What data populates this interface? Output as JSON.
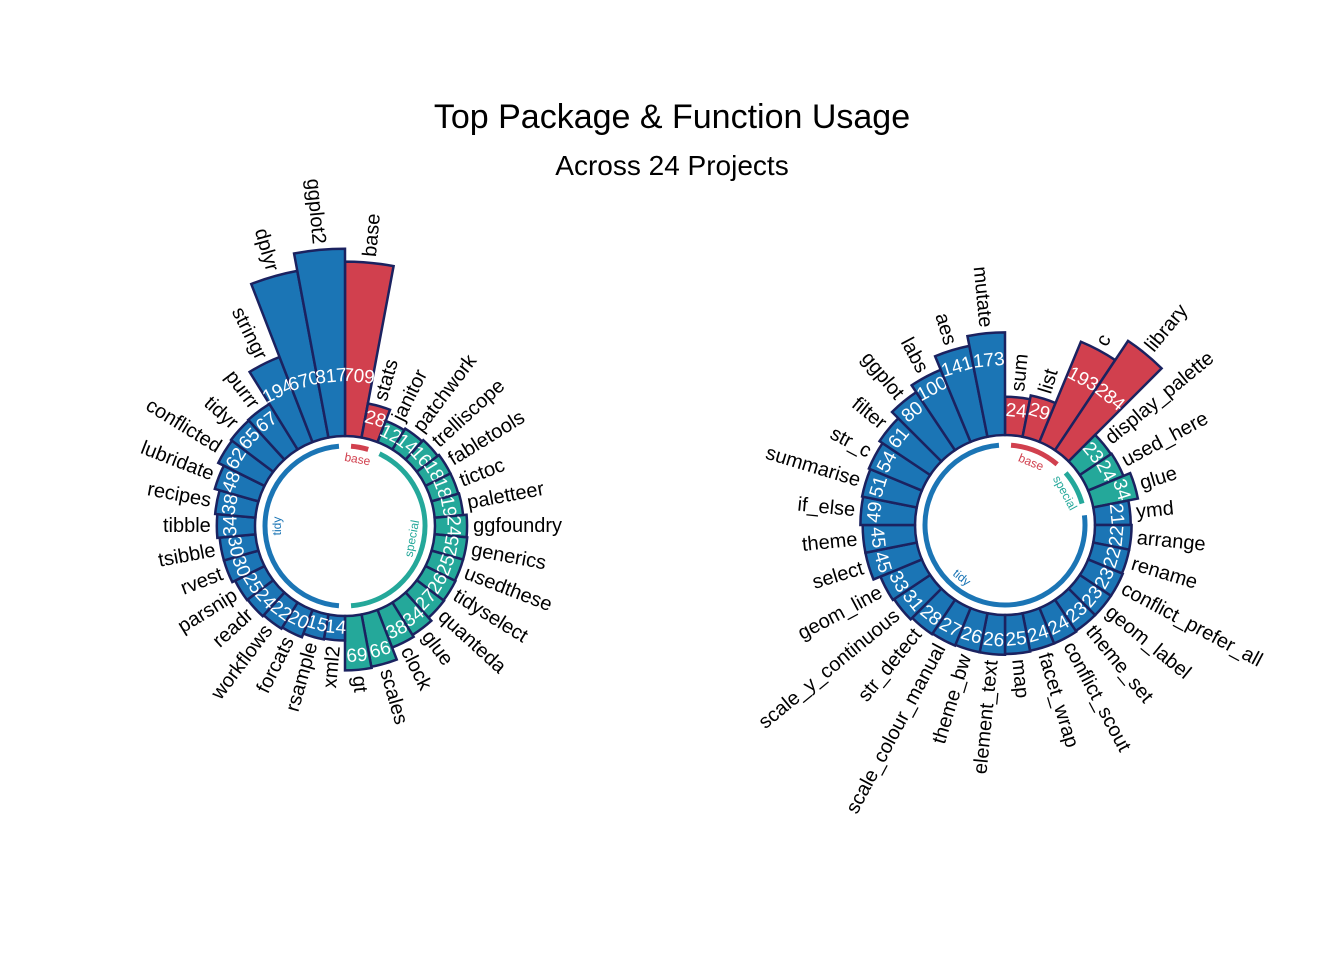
{
  "title": "Top Package & Function Usage",
  "subtitle": "Across 24 Projects",
  "colors": {
    "base": "#d1404e",
    "tidy": "#1b75b5",
    "special": "#24a89a",
    "outline": "#1b2260"
  },
  "chart_data": [
    {
      "type": "bar",
      "coord": "polar",
      "name": "packages",
      "y_scale": "sqrt",
      "bars": [
        {
          "label": "base",
          "value": 709,
          "group": "base"
        },
        {
          "label": "stats",
          "value": 28,
          "group": "base"
        },
        {
          "label": "janitor",
          "value": 12,
          "group": "special"
        },
        {
          "label": "patchwork",
          "value": 14,
          "group": "special"
        },
        {
          "label": "trelliscope",
          "value": 16,
          "group": "special"
        },
        {
          "label": "fabletools",
          "value": 18,
          "group": "special"
        },
        {
          "label": "tictoc",
          "value": 18,
          "group": "special"
        },
        {
          "label": "paletteer",
          "value": 19,
          "group": "special"
        },
        {
          "label": "ggfoundry",
          "value": 24,
          "group": "special"
        },
        {
          "label": "generics",
          "value": 25,
          "group": "special"
        },
        {
          "label": "usedthese",
          "value": 25,
          "group": "special"
        },
        {
          "label": "tidyselect",
          "value": 26,
          "group": "special"
        },
        {
          "label": "quanteda",
          "value": 27,
          "group": "special"
        },
        {
          "label": "glue",
          "value": 34,
          "group": "special"
        },
        {
          "label": "clock",
          "value": 38,
          "group": "special"
        },
        {
          "label": "scales",
          "value": 66,
          "group": "special"
        },
        {
          "label": "gt",
          "value": 69,
          "group": "special"
        },
        {
          "label": "xml2",
          "value": 14,
          "group": "tidy"
        },
        {
          "label": "rsample",
          "value": 15,
          "group": "tidy"
        },
        {
          "label": "forcats",
          "value": 20,
          "group": "tidy"
        },
        {
          "label": "workflows",
          "value": 22,
          "group": "tidy"
        },
        {
          "label": "readr",
          "value": 24,
          "group": "tidy"
        },
        {
          "label": "parsnip",
          "value": 25,
          "group": "tidy"
        },
        {
          "label": "rvest",
          "value": 30,
          "group": "tidy"
        },
        {
          "label": "tsibble",
          "value": 30,
          "group": "tidy"
        },
        {
          "label": "tibble",
          "value": 34,
          "group": "tidy"
        },
        {
          "label": "recipes",
          "value": 38,
          "group": "tidy"
        },
        {
          "label": "lubridate",
          "value": 48,
          "group": "tidy"
        },
        {
          "label": "conflicted",
          "value": 62,
          "group": "tidy"
        },
        {
          "label": "tidyr",
          "value": 65,
          "group": "tidy"
        },
        {
          "label": "purrr",
          "value": 67,
          "group": "tidy"
        },
        {
          "label": "stringr",
          "value": 194,
          "group": "tidy"
        },
        {
          "label": "dplyr",
          "value": 670,
          "group": "tidy"
        },
        {
          "label": "ggplot2",
          "value": 817,
          "group": "tidy"
        }
      ],
      "group_labels": [
        {
          "group": "base",
          "text": "base"
        },
        {
          "group": "special",
          "text": "special"
        },
        {
          "group": "tidy",
          "text": "tidy"
        }
      ]
    },
    {
      "type": "bar",
      "coord": "polar",
      "name": "functions",
      "y_scale": "sqrt",
      "bars": [
        {
          "label": "sum",
          "value": 24,
          "group": "base"
        },
        {
          "label": "list",
          "value": 29,
          "group": "base"
        },
        {
          "label": "c",
          "value": 193,
          "group": "base"
        },
        {
          "label": "library",
          "value": 284,
          "group": "base"
        },
        {
          "label": "display_palette",
          "value": 23,
          "group": "special"
        },
        {
          "label": "used_here",
          "value": 24,
          "group": "special"
        },
        {
          "label": "glue",
          "value": 34,
          "group": "special"
        },
        {
          "label": "ymd",
          "value": 21,
          "group": "tidy"
        },
        {
          "label": "arrange",
          "value": 22,
          "group": "tidy"
        },
        {
          "label": "rename",
          "value": 22,
          "group": "tidy"
        },
        {
          "label": "conflict_prefer_all",
          "value": 23,
          "group": "tidy"
        },
        {
          "label": "geom_label",
          "value": 23,
          "group": "tidy"
        },
        {
          "label": "theme_set",
          "value": 23,
          "group": "tidy"
        },
        {
          "label": "conflict_scout",
          "value": 24,
          "group": "tidy"
        },
        {
          "label": "facet_wrap",
          "value": 24,
          "group": "tidy"
        },
        {
          "label": "map",
          "value": 25,
          "group": "tidy"
        },
        {
          "label": "element_text",
          "value": 26,
          "group": "tidy"
        },
        {
          "label": "theme_bw",
          "value": 26,
          "group": "tidy"
        },
        {
          "label": "scale_colour_manual",
          "value": 27,
          "group": "tidy"
        },
        {
          "label": "str_detect",
          "value": 28,
          "group": "tidy"
        },
        {
          "label": "scale_y_continuous",
          "value": 31,
          "group": "tidy"
        },
        {
          "label": "geom_line",
          "value": 33,
          "group": "tidy"
        },
        {
          "label": "select",
          "value": 45,
          "group": "tidy"
        },
        {
          "label": "theme",
          "value": 45,
          "group": "tidy"
        },
        {
          "label": "if_else",
          "value": 49,
          "group": "tidy"
        },
        {
          "label": "summarise",
          "value": 51,
          "group": "tidy"
        },
        {
          "label": "str_c",
          "value": 54,
          "group": "tidy"
        },
        {
          "label": "filter",
          "value": 61,
          "group": "tidy"
        },
        {
          "label": "ggplot",
          "value": 80,
          "group": "tidy"
        },
        {
          "label": "labs",
          "value": 100,
          "group": "tidy"
        },
        {
          "label": "aes",
          "value": 141,
          "group": "tidy"
        },
        {
          "label": "mutate",
          "value": 173,
          "group": "tidy"
        }
      ],
      "group_labels": [
        {
          "group": "base",
          "text": "base"
        },
        {
          "group": "special",
          "text": "special"
        },
        {
          "group": "tidy",
          "text": "tidy"
        }
      ]
    }
  ]
}
